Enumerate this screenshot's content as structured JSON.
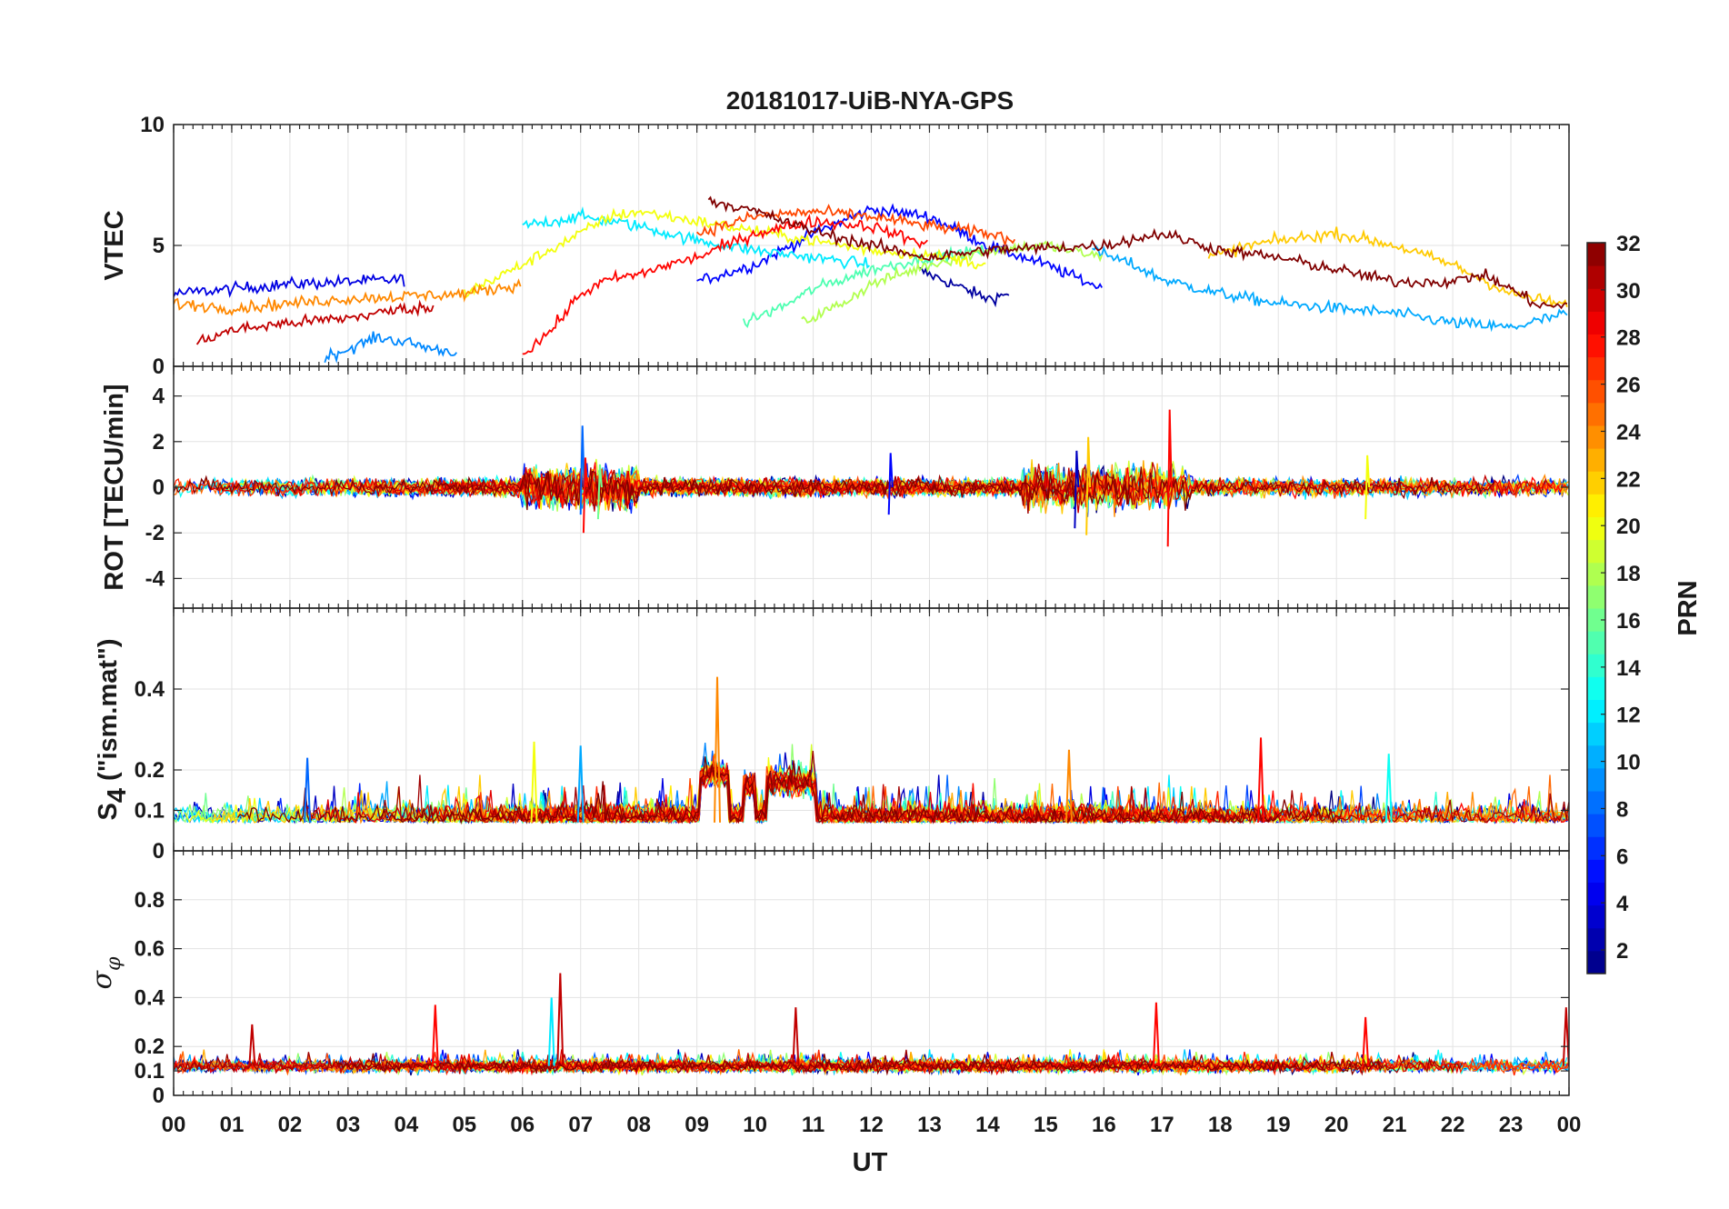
{
  "chart_data": {
    "type": "line",
    "title": "20181017-UiB-NYA-GPS",
    "xlabel": "UT",
    "x_tick_labels": [
      "00",
      "01",
      "02",
      "03",
      "04",
      "05",
      "06",
      "07",
      "08",
      "09",
      "10",
      "11",
      "12",
      "13",
      "14",
      "15",
      "16",
      "17",
      "18",
      "19",
      "20",
      "21",
      "22",
      "23",
      "00"
    ],
    "xlim": [
      0,
      24
    ],
    "colorbar": {
      "label": "PRN",
      "range": [
        1,
        32
      ],
      "tick_labels": [
        "2",
        "4",
        "6",
        "8",
        "10",
        "12",
        "14",
        "16",
        "18",
        "20",
        "22",
        "24",
        "26",
        "28",
        "30",
        "32"
      ],
      "colormap": "jet"
    },
    "panels": [
      {
        "name": "vtec",
        "ylabel": "VTEC",
        "ylim": [
          0,
          10
        ],
        "y_ticks": [
          0,
          5,
          10
        ],
        "y_tick_labels": [
          "0",
          "5",
          "10"
        ],
        "series": [
          {
            "prn": 2,
            "x": [
              12.8,
              13.2,
              13.6,
              14.0,
              14.4
            ],
            "y": [
              4.0,
              3.6,
              3.2,
              2.8,
              3.0
            ]
          },
          {
            "prn": 4,
            "x": [
              0,
              1,
              2,
              3,
              4
            ],
            "y": [
              3.0,
              3.2,
              3.4,
              3.5,
              3.6
            ]
          },
          {
            "prn": 5,
            "x": [
              9.0,
              10,
              11,
              12,
              13,
              14,
              15,
              16
            ],
            "y": [
              3.5,
              4.2,
              5.5,
              6.5,
              6.2,
              5.0,
              4.2,
              3.2
            ]
          },
          {
            "prn": 9,
            "x": [
              2.6,
              3.0,
              3.5,
              4.0,
              4.5,
              4.9
            ],
            "y": [
              0.4,
              0.7,
              1.2,
              1.0,
              0.7,
              0.6
            ]
          },
          {
            "prn": 10,
            "x": [
              15.8,
              16.5,
              17,
              18,
              19,
              20,
              21,
              22,
              23,
              24
            ],
            "y": [
              4.8,
              4.2,
              3.6,
              3.0,
              2.6,
              2.4,
              2.2,
              1.8,
              1.6,
              2.2
            ]
          },
          {
            "prn": 12,
            "x": [
              6.0,
              6.5,
              7,
              8,
              9,
              10,
              11,
              12
            ],
            "y": [
              5.8,
              6.0,
              6.2,
              5.8,
              5.2,
              4.8,
              4.5,
              4.2
            ]
          },
          {
            "prn": 15,
            "x": [
              9.8,
              10.5,
              11,
              12,
              13,
              14
            ],
            "y": [
              1.8,
              2.5,
              3.2,
              4.0,
              4.5,
              4.8
            ]
          },
          {
            "prn": 18,
            "x": [
              10.8,
              11.5,
              12,
              13,
              14,
              15,
              16
            ],
            "y": [
              1.8,
              2.6,
              3.4,
              4.2,
              4.8,
              5.0,
              4.5
            ]
          },
          {
            "prn": 20,
            "x": [
              5,
              6,
              7,
              7.5,
              8,
              9,
              10,
              11,
              12,
              13,
              14
            ],
            "y": [
              3.0,
              4.2,
              5.5,
              6.2,
              6.4,
              6.0,
              5.6,
              5.2,
              4.8,
              4.6,
              4.2
            ]
          },
          {
            "prn": 22,
            "x": [
              17.8,
              18.5,
              19,
              20,
              21,
              22,
              23,
              24
            ],
            "y": [
              4.5,
              5.0,
              5.2,
              5.5,
              5.0,
              4.2,
              3.0,
              2.5
            ]
          },
          {
            "prn": 24,
            "x": [
              0,
              1,
              2,
              3,
              4,
              5,
              6
            ],
            "y": [
              2.6,
              2.4,
              2.6,
              2.8,
              2.9,
              3.0,
              3.4
            ]
          },
          {
            "prn": 26,
            "x": [
              9,
              10,
              11,
              12,
              13,
              14,
              14.5
            ],
            "y": [
              5.5,
              6.2,
              6.4,
              6.2,
              5.8,
              5.5,
              5.2
            ]
          },
          {
            "prn": 28,
            "x": [
              6,
              6.5,
              7,
              7.5,
              8,
              8.5,
              9,
              10,
              11,
              12,
              13
            ],
            "y": [
              0.5,
              1.5,
              3.0,
              3.6,
              3.8,
              4.2,
              4.5,
              5.5,
              6.0,
              5.8,
              5.0
            ]
          },
          {
            "prn": 30,
            "x": [
              0.4,
              1,
              2,
              3,
              4,
              4.5
            ],
            "y": [
              1.0,
              1.5,
              1.8,
              2.0,
              2.4,
              2.4
            ]
          },
          {
            "prn": 32,
            "x": [
              9.2,
              10,
              11,
              12,
              13,
              14,
              15,
              16,
              17,
              18,
              19,
              20,
              21,
              22,
              22.5,
              23,
              23.5,
              24
            ],
            "y": [
              6.9,
              6.4,
              5.6,
              5.0,
              4.5,
              4.8,
              4.9,
              5.0,
              5.5,
              4.8,
              4.5,
              4.0,
              3.5,
              3.5,
              3.8,
              3.2,
              2.5,
              2.5
            ]
          }
        ]
      },
      {
        "name": "rot",
        "ylabel": "ROT [TECU/min]",
        "ylim": [
          -5.3,
          5.3
        ],
        "y_ticks": [
          -4,
          -2,
          0,
          2,
          4
        ],
        "y_tick_labels": [
          "-4",
          "-2",
          "0",
          "2",
          "4"
        ],
        "baseline": 0.0,
        "spikes": [
          {
            "prn": 8,
            "t": 7.0,
            "min": -1.2,
            "max": 2.7
          },
          {
            "prn": 28,
            "t": 7.05,
            "min": -2.0,
            "max": 1.3
          },
          {
            "prn": 16,
            "t": 7.3,
            "min": -1.4,
            "max": 1.0
          },
          {
            "prn": 5,
            "t": 12.3,
            "min": -1.2,
            "max": 1.5
          },
          {
            "prn": 3,
            "t": 15.5,
            "min": -1.8,
            "max": 1.6
          },
          {
            "prn": 22,
            "t": 15.7,
            "min": -2.1,
            "max": 2.2
          },
          {
            "prn": 28,
            "t": 17.1,
            "min": -2.6,
            "max": 3.4
          },
          {
            "prn": 20,
            "t": 20.5,
            "min": -1.4,
            "max": 1.4
          }
        ]
      },
      {
        "name": "s4",
        "ylabel": "S4 (\"ism.mat\")",
        "ylabel_main": "S",
        "ylabel_sub": "4",
        "ylabel_rest": " (\"ism.mat\")",
        "ylim": [
          0,
          0.6
        ],
        "y_ticks": [
          0,
          0.1,
          0.2,
          0.4
        ],
        "y_tick_labels": [
          "0",
          "0.1",
          "0.2",
          "0.4"
        ],
        "baseline": 0.07,
        "plateaus": [
          {
            "from": 9.05,
            "to": 9.55,
            "level": 0.19
          },
          {
            "from": 9.8,
            "to": 10.0,
            "level": 0.16
          },
          {
            "from": 10.2,
            "to": 11.05,
            "level": 0.17
          }
        ],
        "spikes": [
          {
            "prn": 24,
            "t": 9.35,
            "value": 0.43
          },
          {
            "prn": 8,
            "t": 2.3,
            "value": 0.23
          },
          {
            "prn": 20,
            "t": 6.2,
            "value": 0.27
          },
          {
            "prn": 10,
            "t": 7.0,
            "value": 0.26
          },
          {
            "prn": 24,
            "t": 15.4,
            "value": 0.25
          },
          {
            "prn": 28,
            "t": 18.7,
            "value": 0.28
          },
          {
            "prn": 13,
            "t": 20.9,
            "value": 0.24
          }
        ]
      },
      {
        "name": "sigma_phi",
        "ylabel": "σφ",
        "ylabel_main": "σ",
        "ylabel_sub": "φ",
        "ylim": [
          0,
          1.0
        ],
        "y_ticks": [
          0,
          0.1,
          0.2,
          0.4,
          0.6,
          0.8
        ],
        "y_tick_labels": [
          "0",
          "0.1",
          "0.2",
          "0.4",
          "0.6",
          "0.8"
        ],
        "baseline": 0.12,
        "spikes": [
          {
            "prn": 30,
            "t": 1.35,
            "value": 0.29
          },
          {
            "prn": 28,
            "t": 4.5,
            "value": 0.37
          },
          {
            "prn": 12,
            "t": 6.5,
            "value": 0.4
          },
          {
            "prn": 30,
            "t": 6.65,
            "value": 0.5
          },
          {
            "prn": 30,
            "t": 10.7,
            "value": 0.36
          },
          {
            "prn": 28,
            "t": 16.9,
            "value": 0.38
          },
          {
            "prn": 28,
            "t": 20.5,
            "value": 0.32
          },
          {
            "prn": 30,
            "t": 23.95,
            "value": 0.36
          }
        ]
      }
    ]
  }
}
